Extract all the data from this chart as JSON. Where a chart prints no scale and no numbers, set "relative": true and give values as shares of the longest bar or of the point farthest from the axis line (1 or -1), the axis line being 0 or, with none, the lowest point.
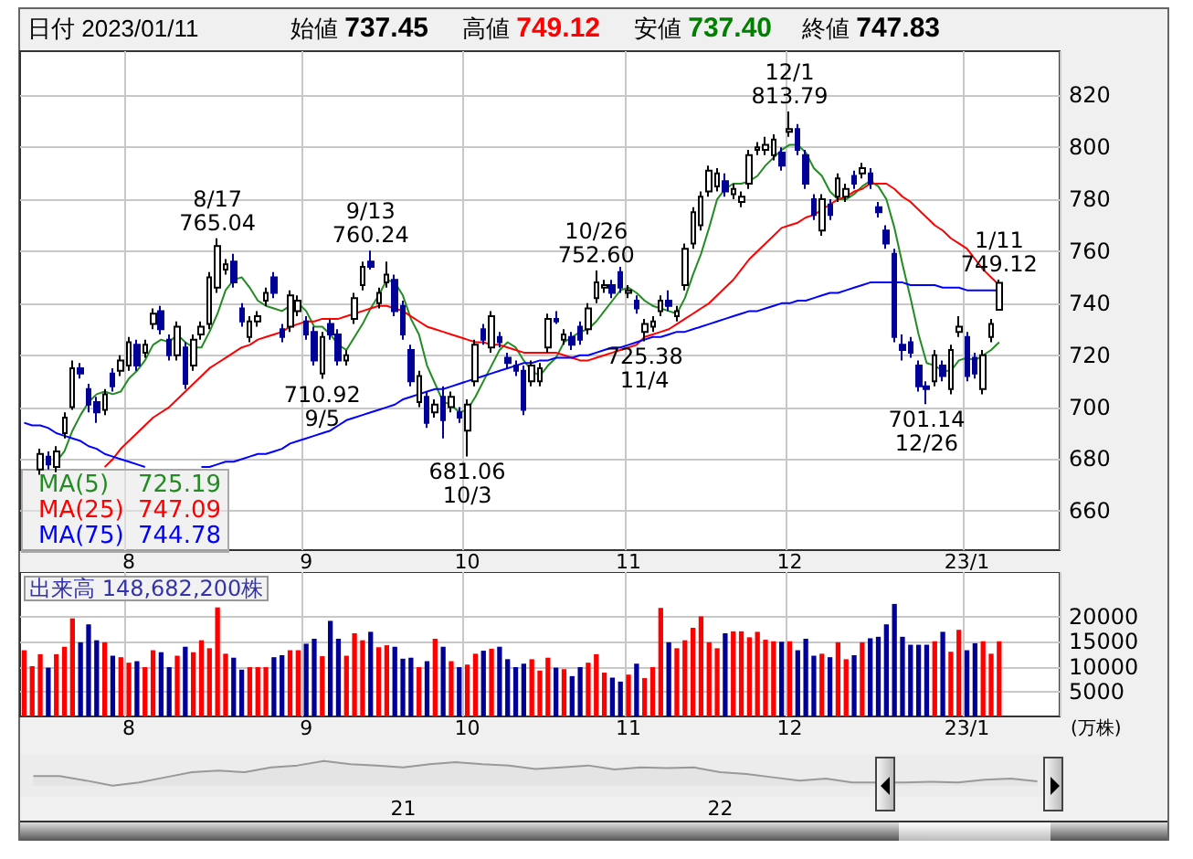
{
  "chart_data": [
    {
      "type": "candlestick",
      "title": "日付 2023/01/11",
      "annotations": [
        "始値 737.45",
        "高値 749.12",
        "安値 737.40",
        "終値 747.83",
        "725.19",
        "747.09",
        "744.78",
        {
          "text": "8/17\n765.04",
          "y": 765.04
        },
        {
          "text": "710.92\n9/5",
          "y": 710.92
        },
        {
          "text": "9/13\n760.24",
          "y": 760.24
        },
        {
          "text": "681.06\n10/3",
          "y": 681.06
        },
        {
          "text": "10/26\n752.60",
          "y": 752.6
        },
        {
          "text": "725.38\n11/4",
          "y": 725.38
        },
        {
          "text": "12/1\n813.79",
          "y": 813.79
        },
        {
          "text": "701.14\n12/26",
          "y": 701.14
        },
        {
          "text": "1/11\n749.12",
          "y": 749.12
        }
      ],
      "categories": [
        null,
        null,
        null,
        null,
        null,
        null,
        null,
        null,
        null,
        null,
        null,
        null,
        null,
        "8",
        null,
        null,
        null,
        null,
        null,
        null,
        null,
        null,
        null,
        null,
        null,
        null,
        null,
        null,
        null,
        null,
        null,
        null,
        null,
        null,
        null,
        "9",
        null,
        null,
        null,
        null,
        null,
        null,
        null,
        null,
        null,
        null,
        null,
        null,
        null,
        null,
        null,
        null,
        null,
        null,
        null,
        "10",
        null,
        null,
        null,
        null,
        null,
        null,
        null,
        null,
        null,
        null,
        null,
        null,
        null,
        null,
        null,
        null,
        null,
        null,
        null,
        "11",
        null,
        null,
        null,
        null,
        null,
        null,
        null,
        null,
        null,
        null,
        null,
        null,
        null,
        null,
        null,
        null,
        null,
        null,
        null,
        "12",
        null,
        null,
        null,
        null,
        null,
        null,
        null,
        null,
        null,
        null,
        null,
        null,
        null,
        null,
        null,
        null,
        null,
        null,
        null,
        null,
        null,
        "23/1",
        null,
        null,
        null,
        null
      ],
      "ohlc": [
        null,
        null,
        [
          676,
          684,
          674,
          682
        ],
        [
          681,
          683,
          676,
          678
        ],
        [
          677,
          685,
          675,
          683
        ],
        [
          690,
          698,
          688,
          696
        ],
        [
          700,
          718,
          699,
          715
        ],
        [
          715,
          717,
          711,
          713
        ],
        [
          707,
          709,
          698,
          701
        ],
        [
          702,
          704,
          694,
          698
        ],
        [
          699,
          707,
          697,
          705
        ],
        [
          713,
          715,
          706,
          708
        ],
        [
          714,
          720,
          712,
          718
        ],
        [
          716,
          727,
          714,
          725
        ],
        [
          724,
          726,
          714,
          716
        ],
        [
          721,
          726,
          719,
          724
        ],
        [
          732,
          738,
          730,
          736
        ],
        [
          737,
          739,
          728,
          730
        ],
        [
          726,
          728,
          718,
          720
        ],
        [
          720,
          733,
          718,
          731
        ],
        [
          723,
          725,
          707,
          709
        ],
        [
          716,
          728,
          714,
          726
        ],
        [
          728,
          733,
          726,
          731
        ],
        [
          732,
          752,
          730,
          750
        ],
        [
          746,
          765.04,
          744,
          762
        ],
        [
          753,
          757,
          751,
          755
        ],
        [
          756,
          759,
          746,
          748
        ],
        [
          738,
          740,
          731,
          733
        ],
        [
          727,
          735,
          725,
          733
        ],
        [
          733,
          737,
          731,
          735
        ],
        [
          741,
          746,
          739,
          744
        ],
        [
          750,
          752,
          742,
          744
        ],
        [
          730,
          732,
          725,
          727
        ],
        [
          731,
          745,
          729,
          743
        ],
        [
          737,
          743,
          735,
          741
        ],
        [
          733,
          735,
          726,
          728
        ],
        [
          729,
          731,
          716,
          718
        ],
        [
          713,
          729,
          710.92,
          727
        ],
        [
          732,
          734,
          726,
          728
        ],
        [
          728,
          730,
          716,
          718
        ],
        [
          718,
          722,
          716,
          720
        ],
        [
          734,
          744,
          732,
          742
        ],
        [
          747,
          756,
          745,
          754
        ],
        [
          756,
          760.24,
          753,
          754
        ],
        [
          740,
          746,
          738,
          744
        ],
        [
          748,
          756,
          746,
          751
        ],
        [
          749,
          751,
          735,
          737
        ],
        [
          739,
          741,
          726,
          728
        ],
        [
          722,
          724,
          708,
          710
        ],
        [
          702,
          714,
          700,
          712
        ],
        [
          704,
          706,
          692,
          694
        ],
        [
          698,
          703,
          696,
          701
        ],
        [
          704,
          708,
          688,
          695
        ],
        [
          700,
          706,
          698,
          704
        ],
        [
          698,
          700,
          694,
          696
        ],
        [
          691,
          703,
          681.06,
          701
        ],
        [
          710,
          726,
          708,
          724
        ],
        [
          730,
          732,
          724,
          726
        ],
        [
          723,
          737,
          721,
          735
        ],
        [
          727,
          729,
          723,
          725
        ],
        [
          719,
          721,
          715,
          717
        ],
        [
          716,
          718,
          712,
          714
        ],
        [
          714,
          716,
          697,
          699
        ],
        [
          710,
          718,
          708,
          716
        ],
        [
          710,
          717,
          708,
          715
        ],
        [
          723,
          736,
          721,
          734
        ],
        [
          734,
          737,
          732,
          733
        ],
        [
          726,
          730,
          724,
          728
        ],
        [
          727,
          729,
          722,
          724
        ],
        [
          731,
          733,
          724,
          726
        ],
        [
          730,
          740,
          728,
          738
        ],
        [
          742,
          752.6,
          740,
          748
        ],
        [
          746,
          749,
          744,
          747
        ],
        [
          747,
          749,
          742,
          744
        ],
        [
          752,
          754,
          744,
          746
        ],
        [
          744,
          747,
          742,
          745
        ],
        [
          741,
          743,
          736,
          738
        ],
        [
          729,
          734,
          725.38,
          732
        ],
        [
          731,
          735,
          729,
          733
        ],
        [
          737,
          743,
          735,
          741
        ],
        [
          741,
          745,
          737,
          739
        ],
        [
          735,
          739,
          733,
          737
        ],
        [
          747,
          763,
          745,
          761
        ],
        [
          763,
          777,
          761,
          775
        ],
        [
          770,
          783,
          768,
          781
        ],
        [
          783,
          793,
          781,
          791
        ],
        [
          785,
          792,
          783,
          790
        ],
        [
          787,
          790,
          781,
          783
        ],
        [
          782,
          786,
          780,
          784
        ],
        [
          779,
          783,
          777,
          781
        ],
        [
          786,
          799,
          784,
          797
        ],
        [
          799,
          802,
          797,
          800
        ],
        [
          799,
          804,
          797,
          801
        ],
        [
          797,
          805,
          795,
          803
        ],
        [
          798,
          800,
          791,
          793
        ],
        [
          806,
          813.79,
          804,
          807
        ],
        [
          807,
          809,
          797,
          799
        ],
        [
          797,
          799,
          784,
          786
        ],
        [
          780,
          782,
          772,
          774
        ],
        [
          768,
          782,
          766,
          780
        ],
        [
          778,
          780,
          772,
          774
        ],
        [
          781,
          790,
          779,
          788
        ],
        [
          781,
          786,
          779,
          784
        ],
        [
          789,
          791,
          784,
          786
        ],
        [
          790,
          794,
          788,
          792
        ],
        [
          790,
          792,
          784,
          786
        ],
        [
          777,
          779,
          773,
          775
        ],
        [
          768,
          770,
          761,
          763
        ],
        [
          759,
          761,
          725,
          727
        ],
        [
          724,
          728,
          718,
          722
        ],
        [
          725,
          727,
          719,
          721
        ],
        [
          716,
          718,
          706,
          708
        ],
        [
          708,
          710,
          701.14,
          707
        ],
        [
          710,
          722,
          708,
          720
        ],
        [
          716,
          718,
          710,
          712
        ],
        [
          707,
          724,
          705,
          722
        ],
        [
          729,
          735,
          727,
          731
        ],
        [
          727,
          729,
          710,
          712
        ],
        [
          719,
          721,
          711,
          713
        ],
        [
          707,
          722,
          705,
          720
        ],
        [
          727,
          734,
          725,
          732
        ],
        [
          737.45,
          749.12,
          737.4,
          747.83
        ]
      ],
      "colors": [
        "#ffffff",
        "#ffffff",
        "#ffffff",
        "#000099",
        "#ffffff",
        "#ffffff",
        "#ffffff",
        "#000099",
        "#000099",
        "#000099",
        "#ffffff",
        "#000099",
        "#ffffff",
        "#ffffff",
        "#000099",
        "#ffffff",
        "#ffffff",
        "#000099",
        "#000099",
        "#ffffff",
        "#000099",
        "#ffffff",
        "#ffffff",
        "#ffffff",
        "#ffffff",
        "#ffffff",
        "#000099",
        "#000099",
        "#ffffff",
        "#ffffff",
        "#ffffff",
        "#000099",
        "#000099",
        "#ffffff",
        "#ffffff",
        "#000099",
        "#000099",
        "#ffffff",
        "#000099",
        "#000099",
        "#ffffff",
        "#ffffff",
        "#ffffff",
        "#000099",
        "#ffffff",
        "#ffffff",
        "#000099",
        "#000099",
        "#000099",
        "#ffffff",
        "#000099",
        "#ffffff",
        "#000099",
        "#ffffff",
        "#000099",
        "#ffffff",
        "#ffffff",
        "#000099",
        "#ffffff",
        "#000099",
        "#000099",
        "#000099",
        "#000099",
        "#ffffff",
        "#ffffff",
        "#ffffff",
        "#000099",
        "#ffffff",
        "#000099",
        "#000099",
        "#ffffff",
        "#ffffff",
        "#ffffff",
        "#000099",
        "#000099",
        "#ffffff",
        "#000099",
        "#ffffff",
        "#ffffff",
        "#ffffff",
        "#000099",
        "#ffffff",
        "#ffffff",
        "#ffffff",
        "#ffffff",
        "#ffffff",
        "#ffffff",
        "#000099",
        "#ffffff",
        "#ffffff",
        "#ffffff",
        "#ffffff",
        "#ffffff",
        "#ffffff",
        "#000099",
        "#ffffff",
        "#000099",
        "#000099",
        "#000099",
        "#ffffff",
        "#000099",
        "#ffffff",
        "#ffffff",
        "#000099",
        "#ffffff",
        "#000099",
        "#000099",
        "#000099",
        "#000099",
        "#000099",
        "#000099",
        "#000099",
        "#000099",
        "#ffffff",
        "#000099",
        "#ffffff",
        "#ffffff",
        "#000099",
        "#000099",
        "#ffffff",
        "#ffffff",
        "#ffffff"
      ],
      "series": [
        {
          "name": "MA(5)",
          "type": "line",
          "color": "#228b22",
          "values": [
            null,
            null,
            null,
            null,
            679,
            683,
            691,
            697,
            702,
            705,
            706,
            705,
            706,
            711,
            714,
            718,
            724,
            726,
            725,
            728,
            725,
            723,
            723,
            729,
            736,
            745,
            749,
            750,
            746,
            741,
            739,
            738,
            737,
            739,
            740,
            737,
            731,
            731,
            728,
            724,
            722,
            727,
            732,
            738,
            743,
            749,
            748,
            743,
            734,
            728,
            716,
            709,
            702,
            701,
            698,
            699,
            704,
            710,
            716,
            722,
            725,
            723,
            718,
            714,
            712,
            716,
            719,
            725,
            727,
            729,
            730,
            733,
            737,
            741,
            745,
            746,
            744,
            741,
            739,
            738,
            737,
            736,
            742,
            751,
            759,
            769,
            780,
            784,
            786,
            786,
            787,
            789,
            793,
            796,
            799,
            801,
            801,
            798,
            792,
            789,
            783,
            780,
            780,
            782,
            785,
            787,
            785,
            780,
            769,
            755,
            742,
            728,
            717,
            716,
            714,
            714,
            718,
            719,
            718,
            720,
            722,
            725
          ]
        },
        {
          "name": "MA(25)",
          "type": "line",
          "color": "#ff0000",
          "values": [
            null,
            null,
            null,
            null,
            null,
            null,
            null,
            null,
            null,
            null,
            677,
            680,
            684,
            687,
            690,
            693,
            696,
            698,
            700,
            703,
            706,
            709,
            712,
            715,
            717,
            719,
            721,
            723,
            724,
            726,
            727,
            728,
            729,
            731,
            732,
            733,
            733,
            734,
            734,
            734,
            735,
            736,
            737,
            738,
            739,
            739,
            738,
            737,
            735,
            733,
            731,
            730,
            729,
            728,
            727,
            726,
            725,
            725,
            724,
            724,
            723,
            722,
            721,
            721,
            721,
            721,
            721,
            720,
            719,
            718,
            718,
            719,
            720,
            721,
            722,
            723,
            724,
            727,
            728,
            729,
            730,
            732,
            734,
            736,
            738,
            740,
            743,
            746,
            749,
            753,
            757,
            760,
            763,
            766,
            769,
            770,
            771,
            773,
            774,
            776,
            778,
            780,
            781,
            783,
            784,
            786,
            786,
            786,
            784,
            781,
            779,
            776,
            773,
            770,
            768,
            765,
            763,
            761,
            757,
            753,
            750,
            747
          ]
        },
        {
          "name": "MA(75)",
          "type": "line",
          "color": "#0000ff",
          "values": [
            694,
            693,
            693,
            692,
            690,
            689,
            688,
            687,
            685,
            684,
            682,
            681,
            680,
            679,
            678,
            677,
            null,
            null,
            null,
            null,
            null,
            null,
            677,
            677,
            678,
            679,
            679,
            680,
            681,
            682,
            682,
            683,
            684,
            686,
            687,
            688,
            689,
            690,
            691,
            693,
            695,
            696,
            697,
            698,
            699,
            700,
            701,
            703,
            704,
            705,
            706,
            707,
            707,
            708,
            709,
            710,
            711,
            712,
            713,
            714,
            715,
            716,
            717,
            717,
            718,
            718,
            719,
            719,
            719,
            720,
            720,
            721,
            722,
            723,
            723,
            724,
            725,
            726,
            727,
            727,
            728,
            729,
            729,
            730,
            731,
            732,
            733,
            734,
            735,
            736,
            737,
            737,
            738,
            739,
            740,
            740,
            741,
            741,
            742,
            743,
            744,
            744,
            745,
            746,
            747,
            748,
            748,
            748,
            748,
            748,
            747,
            747,
            747,
            747,
            746,
            746,
            746,
            745,
            745,
            745,
            745,
            745
          ]
        }
      ],
      "ylim": [
        645,
        837
      ],
      "yticks": [
        660,
        680,
        700,
        720,
        740,
        760,
        780,
        800,
        820
      ],
      "grid": true,
      "legend": "bottom left",
      "marker": "none"
    },
    {
      "type": "bar",
      "title": "出来高 148,682,200株",
      "ylabel": "(万株)",
      "categories": [
        null,
        null,
        null,
        null,
        null,
        null,
        null,
        null,
        null,
        null,
        null,
        null,
        null,
        "8",
        null,
        null,
        null,
        null,
        null,
        null,
        null,
        null,
        null,
        null,
        null,
        null,
        null,
        null,
        null,
        null,
        null,
        null,
        null,
        null,
        null,
        "9",
        null,
        null,
        null,
        null,
        null,
        null,
        null,
        null,
        null,
        null,
        null,
        null,
        null,
        null,
        null,
        null,
        null,
        null,
        null,
        "10",
        null,
        null,
        null,
        null,
        null,
        null,
        null,
        null,
        null,
        null,
        null,
        null,
        null,
        null,
        null,
        null,
        null,
        null,
        null,
        "11",
        null,
        null,
        null,
        null,
        null,
        null,
        null,
        null,
        null,
        null,
        null,
        null,
        null,
        null,
        null,
        null,
        null,
        null,
        null,
        "12",
        null,
        null,
        null,
        null,
        null,
        null,
        null,
        null,
        null,
        null,
        null,
        null,
        null,
        null,
        null,
        null,
        null,
        null,
        null,
        null,
        null,
        "23/1",
        null,
        null,
        null,
        null
      ],
      "values": [
        13300,
        10100,
        12500,
        9800,
        12500,
        14000,
        19700,
        14900,
        18500,
        15300,
        14900,
        12200,
        11900,
        10800,
        11100,
        9900,
        13300,
        12900,
        9900,
        12200,
        14000,
        12900,
        15300,
        13700,
        21900,
        12600,
        11800,
        9400,
        9900,
        9900,
        9900,
        11900,
        12300,
        13300,
        13300,
        14600,
        15600,
        12100,
        19200,
        15600,
        12200,
        16700,
        15300,
        17000,
        13900,
        14300,
        14000,
        11600,
        11800,
        9900,
        11100,
        15600,
        14000,
        11100,
        9900,
        10400,
        12600,
        13200,
        13600,
        14000,
        11500,
        9900,
        10600,
        11500,
        9200,
        11800,
        9800,
        9500,
        8100,
        9900,
        10800,
        12500,
        8800,
        7800,
        7000,
        8400,
        10600,
        7700,
        9900,
        21800,
        14900,
        13700,
        15300,
        17800,
        20100,
        14900,
        13700,
        16700,
        17100,
        17100,
        15900,
        17000,
        15400,
        15100,
        15000,
        15100,
        13300,
        15600,
        12200,
        12600,
        11900,
        14900,
        11500,
        12300,
        14900,
        15700,
        16000,
        18500,
        22600,
        16000,
        14400,
        14400,
        14400,
        15100,
        17000,
        13000,
        17400,
        13300,
        14700,
        15100,
        12600,
        15100
      ],
      "colors": [
        "#ff0000",
        "#ff0000",
        "#ff0000",
        "#000099",
        "#ff0000",
        "#ff0000",
        "#ff0000",
        "#000099",
        "#000099",
        "#000099",
        "#ff0000",
        "#000099",
        "#ff0000",
        "#ff0000",
        "#000099",
        "#ff0000",
        "#ff0000",
        "#000099",
        "#000099",
        "#ff0000",
        "#000099",
        "#ff0000",
        "#ff0000",
        "#ff0000",
        "#ff0000",
        "#ff0000",
        "#000099",
        "#000099",
        "#ff0000",
        "#ff0000",
        "#ff0000",
        "#000099",
        "#000099",
        "#ff0000",
        "#ff0000",
        "#000099",
        "#000099",
        "#ff0000",
        "#000099",
        "#000099",
        "#ff0000",
        "#ff0000",
        "#ff0000",
        "#000099",
        "#ff0000",
        "#ff0000",
        "#000099",
        "#000099",
        "#000099",
        "#ff0000",
        "#000099",
        "#ff0000",
        "#000099",
        "#ff0000",
        "#000099",
        "#ff0000",
        "#ff0000",
        "#000099",
        "#ff0000",
        "#000099",
        "#000099",
        "#000099",
        "#000099",
        "#ff0000",
        "#ff0000",
        "#ff0000",
        "#000099",
        "#ff0000",
        "#000099",
        "#000099",
        "#ff0000",
        "#ff0000",
        "#ff0000",
        "#000099",
        "#000099",
        "#ff0000",
        "#000099",
        "#ff0000",
        "#ff0000",
        "#ff0000",
        "#000099",
        "#ff0000",
        "#ff0000",
        "#ff0000",
        "#ff0000",
        "#ff0000",
        "#ff0000",
        "#000099",
        "#ff0000",
        "#ff0000",
        "#ff0000",
        "#ff0000",
        "#ff0000",
        "#ff0000",
        "#000099",
        "#ff0000",
        "#000099",
        "#000099",
        "#000099",
        "#ff0000",
        "#000099",
        "#ff0000",
        "#ff0000",
        "#000099",
        "#ff0000",
        "#000099",
        "#000099",
        "#000099",
        "#000099",
        "#000099",
        "#000099",
        "#000099",
        "#000099",
        "#ff0000",
        "#000099",
        "#ff0000",
        "#ff0000",
        "#000099",
        "#000099",
        "#ff0000",
        "#ff0000",
        "#ff0000"
      ],
      "ylim": [
        0,
        29000
      ],
      "yticks": [
        5000,
        10000,
        15000,
        20000
      ],
      "grid": true
    },
    {
      "type": "area",
      "relative": true,
      "color": "#999999",
      "categories": [
        null,
        null,
        null,
        null,
        null,
        null,
        null,
        null,
        null,
        null,
        null,
        null,
        null,
        null,
        "21",
        null,
        null,
        null,
        null,
        null,
        null,
        null,
        null,
        null,
        null,
        null,
        "22",
        null,
        null,
        null,
        null,
        null,
        null,
        null,
        null,
        null,
        null,
        null,
        null
      ],
      "values": [
        0.39,
        0.39,
        0.21,
        0,
        0.13,
        0.34,
        0.55,
        0.61,
        0.55,
        0.74,
        0.82,
        1,
        0.87,
        0.82,
        0.74,
        0.87,
        0.95,
        0.87,
        0.82,
        0.68,
        0.74,
        0.82,
        0.66,
        0.74,
        0.71,
        0.74,
        0.55,
        0.47,
        0.34,
        0.21,
        0.29,
        0.13,
        0.13,
        0.13,
        0.16,
        0.13,
        0.24,
        0.29,
        0.18
      ]
    }
  ]
}
